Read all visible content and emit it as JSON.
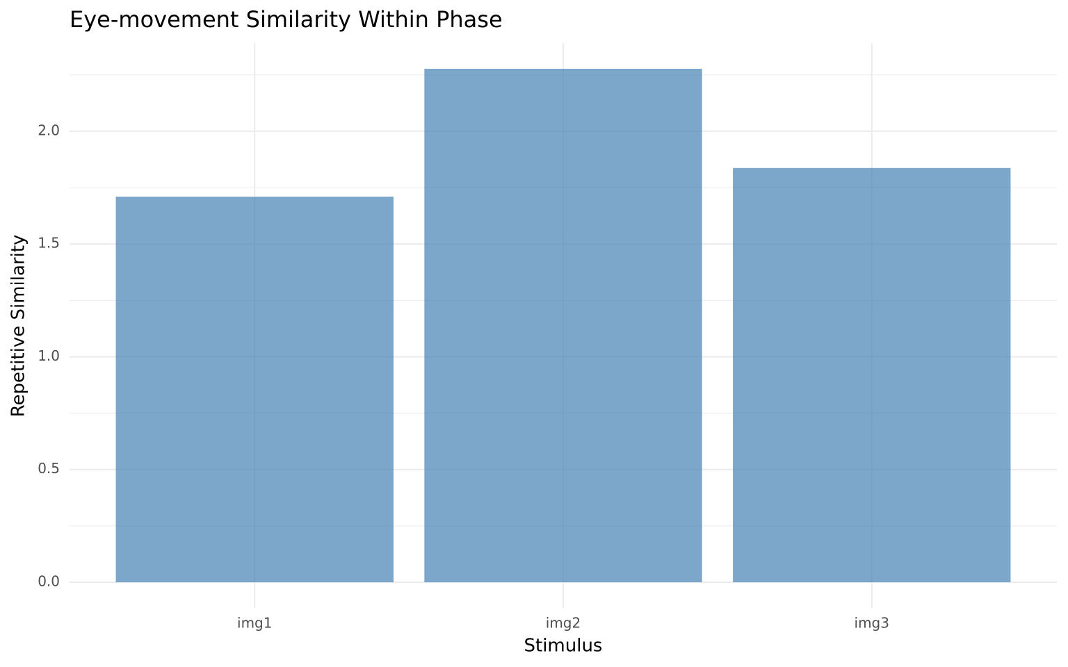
{
  "chart_data": {
    "type": "bar",
    "title": "Eye-movement Similarity Within Phase",
    "x_label": "Stimulus",
    "y_label": "Repetitive Similarity",
    "categories": [
      "img1",
      "img2",
      "img3"
    ],
    "values": [
      1.71,
      2.277,
      1.837
    ],
    "color": "#4682b4",
    "ylim": [
      -0.114,
      2.391
    ],
    "yticks": [
      {
        "value": 0,
        "label": "0.0"
      },
      0.5,
      {
        "value": 1,
        "label": "1.0"
      },
      1.5,
      {
        "value": 2,
        "label": "2.0"
      }
    ],
    "minor_yticks": [
      0.25,
      0.75,
      1.25,
      1.75,
      2.25
    ],
    "grid": true
  }
}
